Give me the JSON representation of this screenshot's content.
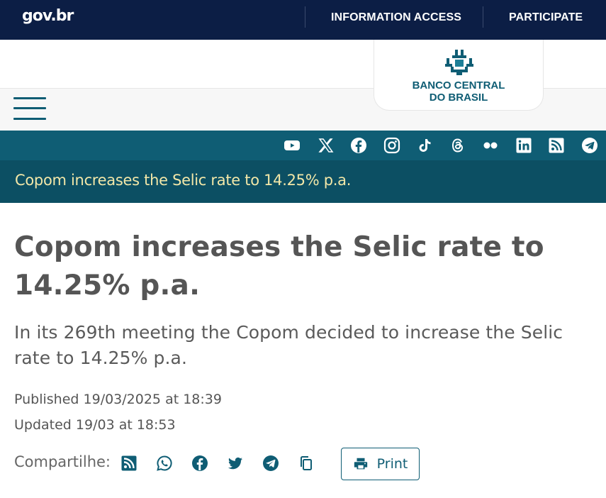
{
  "govbar": {
    "logo": "gov.br",
    "links": [
      "INFORMATION ACCESS",
      "PARTICIPATE"
    ]
  },
  "header": {
    "logo_line1": "BANCO CENTRAL",
    "logo_line2": "DO BRASIL"
  },
  "social_icons": [
    "youtube-icon",
    "x-icon",
    "facebook-icon",
    "instagram-icon",
    "tiktok-icon",
    "threads-icon",
    "flickr-icon",
    "linkedin-icon",
    "rss-icon",
    "telegram-icon"
  ],
  "title_band": "Copom increases the Selic rate to 14.25% p.a.",
  "article": {
    "headline": "Copom increases the Selic rate to 14.25% p.a.",
    "lead": "In its 269th meeting the Copom decided to increase the Selic rate to 14.25% p.a.",
    "published": "Published 19/03/2025 at 18:39",
    "updated": "Updated 19/03 at 18:53"
  },
  "share": {
    "label": "Compartilhe:",
    "icons": [
      "rss-icon",
      "whatsapp-icon",
      "facebook-icon",
      "twitter-icon",
      "telegram-icon",
      "copy-link-icon"
    ],
    "print_label": "Print"
  },
  "colors": {
    "gov_navy": "#0c1e45",
    "bcb_teal": "#0f5d74",
    "title_band": "#0c4f63",
    "title_band_text": "#f2e7a8",
    "body_text": "#555555"
  }
}
